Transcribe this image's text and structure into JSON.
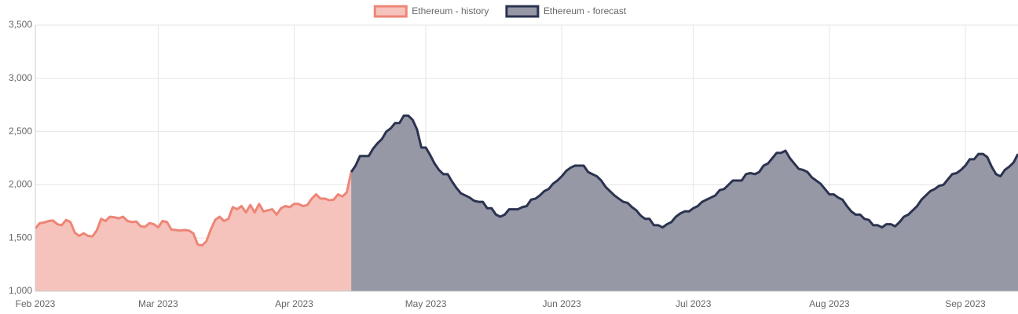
{
  "chart_data": {
    "type": "area",
    "categories": [
      "Feb 2023",
      null,
      null,
      null,
      null,
      null,
      null,
      null,
      null,
      null,
      null,
      null,
      null,
      null,
      null,
      null,
      null,
      null,
      null,
      null,
      null,
      null,
      null,
      null,
      null,
      null,
      null,
      null,
      "Mar 2023",
      null,
      null,
      null,
      null,
      null,
      null,
      null,
      null,
      null,
      null,
      null,
      null,
      null,
      null,
      null,
      null,
      null,
      null,
      null,
      null,
      null,
      null,
      null,
      null,
      null,
      null,
      null,
      null,
      null,
      null,
      "Apr 2023",
      null,
      null,
      null,
      null,
      null,
      null,
      null,
      null,
      null,
      null,
      null,
      null,
      null,
      null,
      null,
      null,
      null,
      null,
      null,
      null,
      null,
      null,
      null,
      null,
      null,
      null,
      null,
      null,
      null,
      "May 2023",
      null,
      null,
      null,
      null,
      null,
      null,
      null,
      null,
      null,
      null,
      null,
      null,
      null,
      null,
      null,
      null,
      null,
      null,
      null,
      null,
      null,
      null,
      null,
      null,
      null,
      null,
      null,
      null,
      null,
      null,
      "Jun 2023",
      null,
      null,
      null,
      null,
      null,
      null,
      null,
      null,
      null,
      null,
      null,
      null,
      null,
      null,
      null,
      null,
      null,
      null,
      null,
      null,
      null,
      null,
      null,
      null,
      null,
      null,
      null,
      null,
      null,
      "Jul 2023",
      null,
      null,
      null,
      null,
      null,
      null,
      null,
      null,
      null,
      null,
      null,
      null,
      null,
      null,
      null,
      null,
      null,
      null,
      null,
      null,
      null,
      null,
      null,
      null,
      null,
      null,
      null,
      null,
      null,
      null,
      "Aug 2023",
      null,
      null,
      null,
      null,
      null,
      null,
      null,
      null,
      null,
      null,
      null,
      null,
      null,
      null,
      null,
      null,
      null,
      null,
      null,
      null,
      null,
      null,
      null,
      null,
      null,
      null,
      null,
      null,
      null,
      null,
      "Sep 2023",
      null,
      null,
      null,
      null,
      null,
      null,
      null,
      null,
      null,
      null,
      null,
      null
    ],
    "series": [
      {
        "name": "Ethereum - history",
        "color": "#ee8577",
        "fill": "#f5c3bc",
        "values": [
          1590,
          1640,
          1645,
          1660,
          1665,
          1630,
          1620,
          1670,
          1650,
          1550,
          1520,
          1545,
          1520,
          1515,
          1570,
          1680,
          1660,
          1700,
          1695,
          1685,
          1700,
          1660,
          1650,
          1655,
          1610,
          1605,
          1640,
          1630,
          1600,
          1660,
          1650,
          1580,
          1575,
          1570,
          1575,
          1570,
          1545,
          1440,
          1430,
          1470,
          1580,
          1670,
          1700,
          1660,
          1680,
          1790,
          1770,
          1800,
          1740,
          1810,
          1740,
          1820,
          1750,
          1760,
          1770,
          1720,
          1780,
          1800,
          1790,
          1820,
          1820,
          1800,
          1810,
          1870,
          1910,
          1870,
          1870,
          1855,
          1860,
          1910,
          1890,
          1930,
          2120,
          null,
          null,
          null,
          null,
          null,
          null,
          null,
          null,
          null,
          null,
          null,
          null,
          null,
          null,
          null,
          null,
          null,
          null,
          null,
          null,
          null,
          null,
          null,
          null,
          null,
          null,
          null,
          null,
          null,
          null,
          null,
          null,
          null,
          null,
          null,
          null,
          null,
          null,
          null,
          null,
          null,
          null,
          null,
          null,
          null,
          null,
          null,
          null,
          null,
          null,
          null,
          null,
          null,
          null,
          null,
          null,
          null,
          null,
          null,
          null,
          null,
          null,
          null,
          null,
          null,
          null,
          null,
          null,
          null,
          null,
          null,
          null,
          null,
          null,
          null,
          null,
          null,
          null,
          null,
          null,
          null,
          null,
          null,
          null,
          null,
          null,
          null,
          null,
          null,
          null,
          null,
          null,
          null,
          null,
          null,
          null,
          null,
          null,
          null,
          null,
          null,
          null,
          null,
          null,
          null,
          null,
          null,
          null,
          null,
          null,
          null,
          null,
          null,
          null,
          null,
          null,
          null,
          null,
          null,
          null,
          null,
          null,
          null,
          null,
          null,
          null,
          null,
          null,
          null,
          null,
          null,
          null,
          null,
          null,
          null,
          null,
          null,
          null,
          null,
          null,
          null,
          null,
          null,
          null,
          null,
          null,
          null,
          null,
          null,
          null,
          null,
          null
        ]
      },
      {
        "name": "Ethereum - forecast",
        "color": "#2b3350",
        "fill": "#9698a6",
        "values": [
          null,
          null,
          null,
          null,
          null,
          null,
          null,
          null,
          null,
          null,
          null,
          null,
          null,
          null,
          null,
          null,
          null,
          null,
          null,
          null,
          null,
          null,
          null,
          null,
          null,
          null,
          null,
          null,
          null,
          null,
          null,
          null,
          null,
          null,
          null,
          null,
          null,
          null,
          null,
          null,
          null,
          null,
          null,
          null,
          null,
          null,
          null,
          null,
          null,
          null,
          null,
          null,
          null,
          null,
          null,
          null,
          null,
          null,
          null,
          null,
          null,
          null,
          null,
          null,
          null,
          null,
          null,
          null,
          null,
          null,
          null,
          null,
          2120,
          2180,
          2270,
          2270,
          2270,
          2340,
          2390,
          2430,
          2500,
          2530,
          2580,
          2580,
          2650,
          2650,
          2610,
          2520,
          2350,
          2350,
          2280,
          2200,
          2140,
          2100,
          2100,
          2030,
          1970,
          1920,
          1900,
          1880,
          1850,
          1840,
          1840,
          1780,
          1780,
          1720,
          1700,
          1720,
          1770,
          1770,
          1770,
          1790,
          1800,
          1860,
          1870,
          1900,
          1940,
          1960,
          2010,
          2040,
          2080,
          2130,
          2160,
          2180,
          2180,
          2180,
          2120,
          2100,
          2080,
          2040,
          1980,
          1940,
          1900,
          1870,
          1840,
          1830,
          1790,
          1760,
          1710,
          1680,
          1680,
          1620,
          1620,
          1600,
          1630,
          1650,
          1700,
          1730,
          1750,
          1750,
          1780,
          1800,
          1840,
          1860,
          1880,
          1900,
          1950,
          1960,
          2000,
          2040,
          2040,
          2040,
          2100,
          2110,
          2100,
          2120,
          2180,
          2200,
          2250,
          2300,
          2300,
          2320,
          2250,
          2200,
          2150,
          2140,
          2120,
          2070,
          2040,
          2010,
          1960,
          1910,
          1910,
          1880,
          1860,
          1800,
          1750,
          1720,
          1720,
          1680,
          1670,
          1620,
          1620,
          1600,
          1630,
          1630,
          1610,
          1650,
          1700,
          1720,
          1760,
          1800,
          1860,
          1900,
          1940,
          1960,
          1990,
          2000,
          2050,
          2100,
          2110,
          2140,
          2180,
          2240,
          2240,
          2290,
          2290,
          2260,
          2170,
          2100,
          2080,
          2140,
          2170,
          2210,
          2290
        ]
      }
    ],
    "ylim": [
      1000,
      3500
    ],
    "yticks": [
      {
        "value": 1000,
        "label": "1,000"
      },
      {
        "value": 1500,
        "label": "1,500"
      },
      {
        "value": 2000,
        "label": "2,000"
      },
      {
        "value": 2500,
        "label": "2,500"
      },
      {
        "value": 3000,
        "label": "3,000"
      },
      {
        "value": 3500,
        "label": "3,500"
      }
    ],
    "grid": true,
    "legend": "top"
  }
}
